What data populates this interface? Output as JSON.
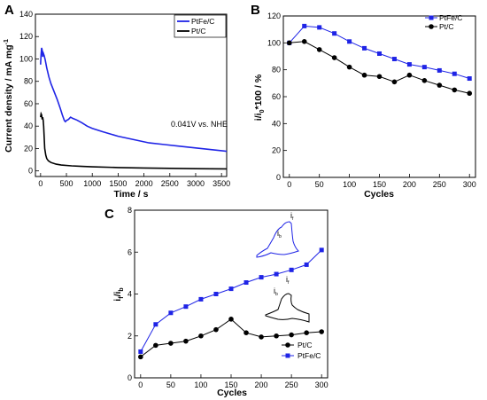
{
  "figure": {
    "panels": [
      "A",
      "B",
      "C"
    ]
  },
  "colors": {
    "blue": "#1f24e6",
    "black": "#000000"
  },
  "chart_data": [
    {
      "panel": "A",
      "type": "line",
      "xlabel": "Time / s",
      "ylabel": "Current density / mA mg",
      "ylabel_superscript": "-1",
      "xlim": [
        -100,
        3600
      ],
      "ylim": [
        -5,
        140
      ],
      "xticks": [
        0,
        500,
        1000,
        1500,
        2000,
        2500,
        3000,
        3500
      ],
      "yticks": [
        0,
        20,
        40,
        60,
        80,
        100,
        120,
        140
      ],
      "annotation": "0.041V vs. NHE",
      "legend_position": "top-right",
      "series": [
        {
          "name": "PtFe/C",
          "color": "#1f24e6",
          "x": [
            0,
            10,
            20,
            30,
            40,
            55,
            70,
            90,
            120,
            160,
            200,
            260,
            320,
            380,
            420,
            460,
            480,
            500,
            540,
            580,
            620,
            700,
            800,
            900,
            1000,
            1200,
            1500,
            1800,
            2100,
            2400,
            2700,
            3000,
            3300,
            3600
          ],
          "y": [
            95,
            104,
            110,
            108,
            102,
            105,
            103,
            99,
            92,
            84,
            78,
            71,
            64,
            56,
            50,
            45,
            44,
            45,
            46,
            48,
            47,
            45.5,
            43,
            40,
            38,
            35,
            31,
            28,
            25,
            23.5,
            22,
            20.5,
            19,
            17.5
          ]
        },
        {
          "name": "Pt/C",
          "color": "#000000",
          "x": [
            0,
            10,
            20,
            30,
            40,
            50,
            60,
            70,
            80,
            100,
            120,
            150,
            200,
            300,
            400,
            600,
            800,
            1000,
            1500,
            2000,
            2500,
            3000,
            3600
          ],
          "y": [
            48,
            51,
            50,
            46,
            48,
            45,
            40,
            30,
            20,
            14,
            11,
            9,
            7.5,
            6,
            5.2,
            4.5,
            4,
            3.6,
            3,
            2.6,
            2.3,
            2,
            1.8
          ]
        }
      ]
    },
    {
      "panel": "B",
      "type": "line",
      "xlabel": "Cycles",
      "ylabel": "i/i",
      "ylabel_subscript": "0",
      "ylabel_rest": "*100 / %",
      "xlim": [
        -10,
        310
      ],
      "ylim": [
        0,
        120
      ],
      "xticks": [
        0,
        50,
        100,
        150,
        200,
        250,
        300
      ],
      "yticks": [
        0,
        20,
        40,
        60,
        80,
        100,
        120
      ],
      "legend_position": "top-right",
      "series": [
        {
          "name": "PtFe/C",
          "color": "#1f24e6",
          "marker": "square",
          "x": [
            0,
            25,
            50,
            75,
            100,
            125,
            150,
            175,
            200,
            225,
            250,
            275,
            300
          ],
          "y": [
            100,
            112.5,
            111.5,
            107,
            101,
            96,
            92,
            88,
            84,
            82,
            79.5,
            77,
            73.5
          ]
        },
        {
          "name": "Pt/C",
          "color": "#000000",
          "marker": "circle",
          "x": [
            0,
            25,
            50,
            75,
            100,
            125,
            150,
            175,
            200,
            225,
            250,
            275,
            300
          ],
          "y": [
            100,
            101,
            95,
            89,
            82,
            76,
            75,
            71,
            76,
            72,
            68.5,
            65,
            62.5
          ]
        }
      ]
    },
    {
      "panel": "C",
      "type": "line",
      "xlabel": "Cycles",
      "ylabel": "i",
      "ylabel_sub1": "f",
      "ylabel_mid": "/i",
      "ylabel_sub2": "b",
      "xlim": [
        -10,
        310
      ],
      "ylim": [
        0,
        8
      ],
      "xticks": [
        0,
        50,
        100,
        150,
        200,
        250,
        300
      ],
      "yticks": [
        0,
        2,
        4,
        6,
        8
      ],
      "legend_position": "bottom-right",
      "inset_labels": [
        "i",
        "f",
        "i",
        "b",
        "i",
        "f",
        "i",
        "b"
      ],
      "series": [
        {
          "name": "Pt/C",
          "color": "#000000",
          "marker": "circle",
          "x": [
            0,
            25,
            50,
            75,
            100,
            125,
            150,
            175,
            200,
            225,
            250,
            275,
            300
          ],
          "y": [
            1.0,
            1.55,
            1.65,
            1.75,
            2.0,
            2.3,
            2.8,
            2.15,
            1.95,
            2.0,
            2.05,
            2.15,
            2.2
          ]
        },
        {
          "name": "PtFe/C",
          "color": "#1f24e6",
          "marker": "square",
          "x": [
            0,
            25,
            50,
            75,
            100,
            125,
            150,
            175,
            200,
            225,
            250,
            275,
            300
          ],
          "y": [
            1.25,
            2.55,
            3.1,
            3.4,
            3.75,
            4.0,
            4.25,
            4.55,
            4.8,
            4.95,
            5.15,
            5.4,
            6.1
          ]
        }
      ]
    }
  ]
}
